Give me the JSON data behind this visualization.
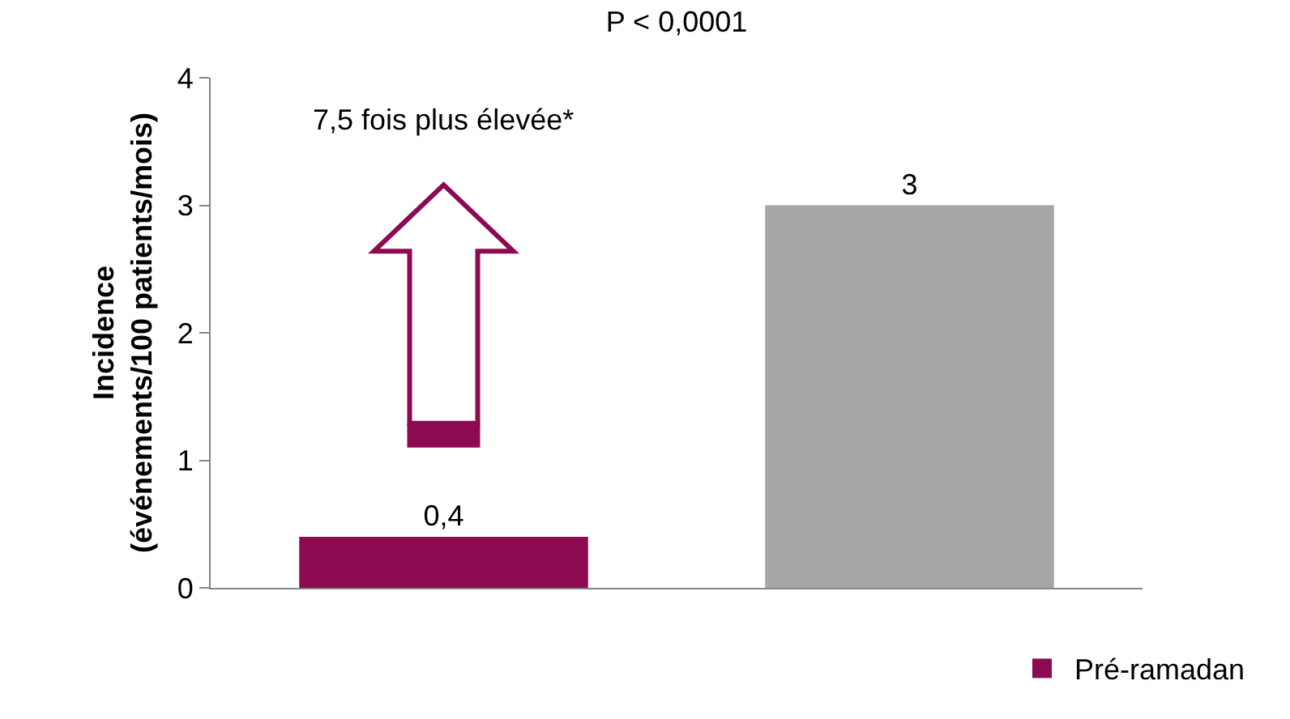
{
  "chart_data": {
    "type": "bar",
    "title": "P < 0,0001",
    "ylabel": "Incidence\n(événements/100 patients/mois)",
    "categories": [
      null,
      null
    ],
    "series": [
      {
        "name": "Pré-ramadan",
        "color": "#8b0a50",
        "values": [
          0.4,
          null
        ],
        "value_labels": [
          "0,4",
          null
        ]
      },
      {
        "color": "#a6a6a6",
        "values": [
          null,
          3
        ],
        "value_labels": [
          null,
          "3"
        ]
      }
    ],
    "ylim": [
      0,
      4
    ],
    "yticks": [
      0,
      1,
      2,
      3,
      4
    ],
    "grid": false,
    "legend": "bottom right",
    "tick_labels": "y",
    "annotations": [
      "7,5 fois plus élevée*"
    ]
  }
}
